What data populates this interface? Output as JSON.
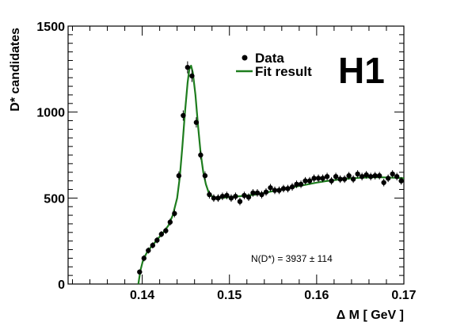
{
  "chart_data": {
    "type": "scatter",
    "xlabel": "Δ M [ GeV ]",
    "ylabel": "D* candidates",
    "xlim": [
      0.1315,
      0.17
    ],
    "ylim": [
      0,
      1500
    ],
    "x_ticks": [
      0.14,
      0.15,
      0.16,
      0.17
    ],
    "x_tick_labels": [
      "0.14",
      "0.15",
      "0.16",
      "0.17"
    ],
    "y_ticks": [
      0,
      500,
      1000,
      1500
    ],
    "y_tick_labels": [
      "0",
      "500",
      "1000",
      "1500"
    ],
    "legend": {
      "placement": "top-right",
      "entries": [
        {
          "label": "Data",
          "marker": "point",
          "color": "#000000"
        },
        {
          "label": "Fit result",
          "marker": "line",
          "color": "#1e7d1e"
        }
      ]
    },
    "logo": "H1",
    "annotation": "N(D*) = 3937 ± 114",
    "series": [
      {
        "name": "Data",
        "kind": "points-with-errors",
        "color": "#000000",
        "x": [
          0.1397,
          0.1402,
          0.1407,
          0.1412,
          0.1417,
          0.1422,
          0.1427,
          0.1432,
          0.1437,
          0.1442,
          0.1447,
          0.1452,
          0.1457,
          0.1462,
          0.1467,
          0.1472,
          0.1477,
          0.1482,
          0.1487,
          0.1492,
          0.1497,
          0.1502,
          0.1507,
          0.1512,
          0.1517,
          0.1522,
          0.1527,
          0.1532,
          0.1537,
          0.1542,
          0.1547,
          0.1552,
          0.1557,
          0.1562,
          0.1567,
          0.1572,
          0.1577,
          0.1582,
          0.1587,
          0.1592,
          0.1597,
          0.1602,
          0.1607,
          0.1612,
          0.1617,
          0.1622,
          0.1627,
          0.1632,
          0.1637,
          0.1642,
          0.1647,
          0.1652,
          0.1657,
          0.1662,
          0.1667,
          0.1672,
          0.1677,
          0.1682,
          0.1687,
          0.1692,
          0.1697
        ],
        "y": [
          70,
          150,
          195,
          225,
          255,
          290,
          310,
          360,
          410,
          630,
          980,
          1260,
          1210,
          940,
          750,
          630,
          520,
          500,
          500,
          510,
          515,
          500,
          510,
          480,
          515,
          505,
          530,
          530,
          520,
          535,
          560,
          545,
          545,
          555,
          555,
          565,
          580,
          580,
          600,
          600,
          615,
          615,
          615,
          625,
          600,
          625,
          610,
          610,
          630,
          610,
          640,
          625,
          635,
          625,
          630,
          630,
          590,
          615,
          640,
          625,
          600
        ],
        "err": [
          15,
          18,
          18,
          18,
          18,
          18,
          18,
          20,
          22,
          25,
          30,
          35,
          35,
          30,
          25,
          25,
          23,
          22,
          22,
          22,
          22,
          22,
          22,
          22,
          22,
          22,
          22,
          22,
          22,
          22,
          22,
          22,
          22,
          22,
          22,
          22,
          22,
          22,
          22,
          22,
          22,
          22,
          22,
          22,
          22,
          22,
          22,
          22,
          22,
          22,
          22,
          22,
          22,
          22,
          22,
          22,
          22,
          22,
          22,
          22,
          22
        ]
      },
      {
        "name": "Fit result",
        "kind": "line",
        "color": "#1e7d1e",
        "x": [
          0.13955,
          0.1398,
          0.1401,
          0.1405,
          0.141,
          0.1415,
          0.142,
          0.1425,
          0.143,
          0.1435,
          0.144,
          0.1443,
          0.1446,
          0.1449,
          0.1452,
          0.1454,
          0.1456,
          0.1458,
          0.1461,
          0.1464,
          0.1467,
          0.147,
          0.1473,
          0.1476,
          0.148,
          0.1485,
          0.149,
          0.15,
          0.151,
          0.152,
          0.153,
          0.154,
          0.155,
          0.156,
          0.157,
          0.158,
          0.159,
          0.16,
          0.161,
          0.162,
          0.163,
          0.164,
          0.165,
          0.166,
          0.167,
          0.168,
          0.169,
          0.17
        ],
        "y": [
          0,
          80,
          140,
          180,
          215,
          245,
          275,
          305,
          340,
          400,
          500,
          620,
          800,
          1000,
          1170,
          1250,
          1270,
          1230,
          1100,
          920,
          760,
          650,
          580,
          535,
          510,
          500,
          500,
          505,
          510,
          515,
          520,
          530,
          540,
          550,
          560,
          570,
          580,
          590,
          598,
          604,
          610,
          615,
          618,
          620,
          621,
          620,
          618,
          615
        ]
      }
    ]
  }
}
